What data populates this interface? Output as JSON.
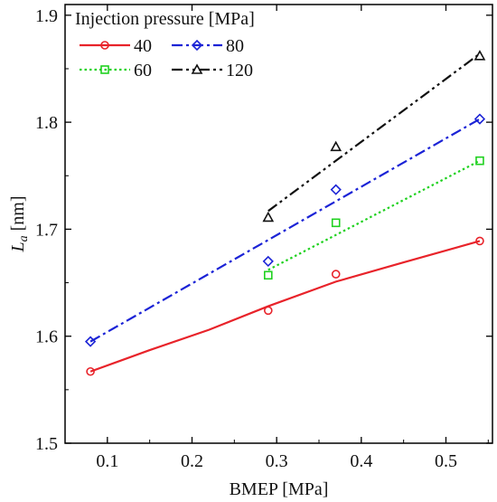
{
  "chart_data": {
    "type": "scatter",
    "xlabel": "BMEP [MPa]",
    "ylabel": "L_a [nm]",
    "ylabel_main": "L",
    "ylabel_sub": "a",
    "ylabel_unit": " [nm]",
    "xlim": [
      0.05,
      0.555
    ],
    "ylim": [
      1.5,
      1.91
    ],
    "xticks": [
      0.1,
      0.2,
      0.3,
      0.4,
      0.5
    ],
    "yticks": [
      1.5,
      1.6,
      1.7,
      1.8,
      1.9
    ],
    "xtick_labels": [
      "0.1",
      "0.2",
      "0.3",
      "0.4",
      "0.5"
    ],
    "ytick_labels": [
      "1.5",
      "1.6",
      "1.7",
      "1.8",
      "1.9"
    ],
    "grid": false,
    "legend": {
      "title": "Injection pressure [MPa]",
      "placement": "top-left"
    },
    "series": [
      {
        "name": "40",
        "color": "#e8232a",
        "marker": "circle",
        "line_style": "solid",
        "x": [
          0.08,
          0.29,
          0.37,
          0.54
        ],
        "y": [
          1.567,
          1.624,
          1.658,
          1.689
        ],
        "fit_x": [
          0.08,
          0.15,
          0.22,
          0.29,
          0.37,
          0.45,
          0.54
        ],
        "fit_y": [
          1.567,
          1.587,
          1.606,
          1.628,
          1.651,
          1.669,
          1.689
        ]
      },
      {
        "name": "60",
        "color": "#1fd11f",
        "marker": "square",
        "line_style": "dotted",
        "x": [
          0.29,
          0.37,
          0.54
        ],
        "y": [
          1.657,
          1.706,
          1.764
        ],
        "fit_x": [
          0.29,
          0.54
        ],
        "fit_y": [
          1.662,
          1.764
        ]
      },
      {
        "name": "80",
        "color": "#1b23d6",
        "marker": "diamond",
        "line_style": "dashdot",
        "x": [
          0.08,
          0.29,
          0.37,
          0.54
        ],
        "y": [
          1.595,
          1.67,
          1.737,
          1.803
        ],
        "fit_x": [
          0.08,
          0.54
        ],
        "fit_y": [
          1.595,
          1.803
        ]
      },
      {
        "name": "120",
        "color": "#111111",
        "marker": "triangle",
        "line_style": "dashdotdot",
        "x": [
          0.29,
          0.37,
          0.54
        ],
        "y": [
          1.711,
          1.777,
          1.862
        ],
        "fit_x": [
          0.29,
          0.54
        ],
        "fit_y": [
          1.717,
          1.864
        ]
      }
    ]
  }
}
